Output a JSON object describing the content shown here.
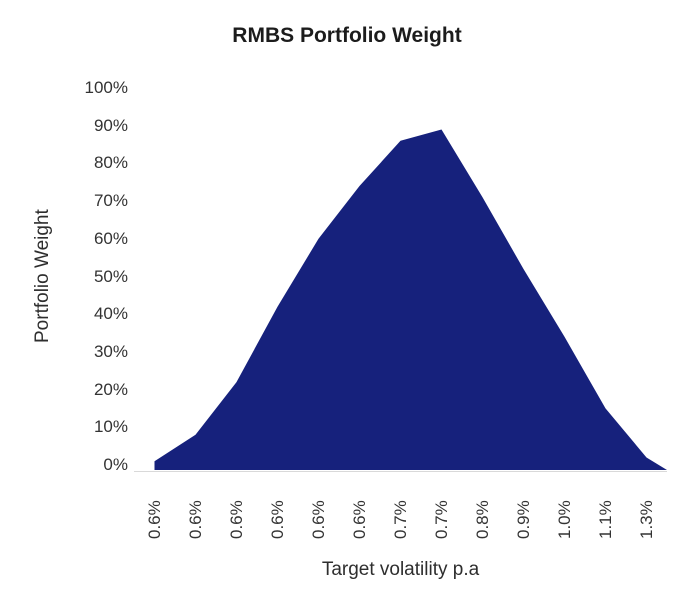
{
  "chart_data": {
    "type": "area",
    "title": "RMBS Portfolio Weight",
    "xlabel": "Target volatility p.a",
    "ylabel": "Portfolio Weight",
    "categories": [
      "0.6%",
      "0.6%",
      "0.6%",
      "0.6%",
      "0.6%",
      "0.6%",
      "0.7%",
      "0.7%",
      "0.8%",
      "0.9%",
      "1.0%",
      "1.1%",
      "1.3%"
    ],
    "values": [
      1,
      8,
      22,
      42,
      60,
      74,
      86,
      89,
      71,
      52,
      34,
      15,
      2
    ],
    "y_ticks": [
      "100%",
      "90%",
      "80%",
      "70%",
      "60%",
      "50%",
      "40%",
      "30%",
      "20%",
      "10%",
      "0%"
    ],
    "ylim": [
      0,
      100
    ],
    "grid": false,
    "legend": false,
    "fill_color": "#16217C",
    "axis_line_color": "#d9d9d9",
    "tick_text_color": "#333333",
    "title_color": "#1c1c1c"
  }
}
